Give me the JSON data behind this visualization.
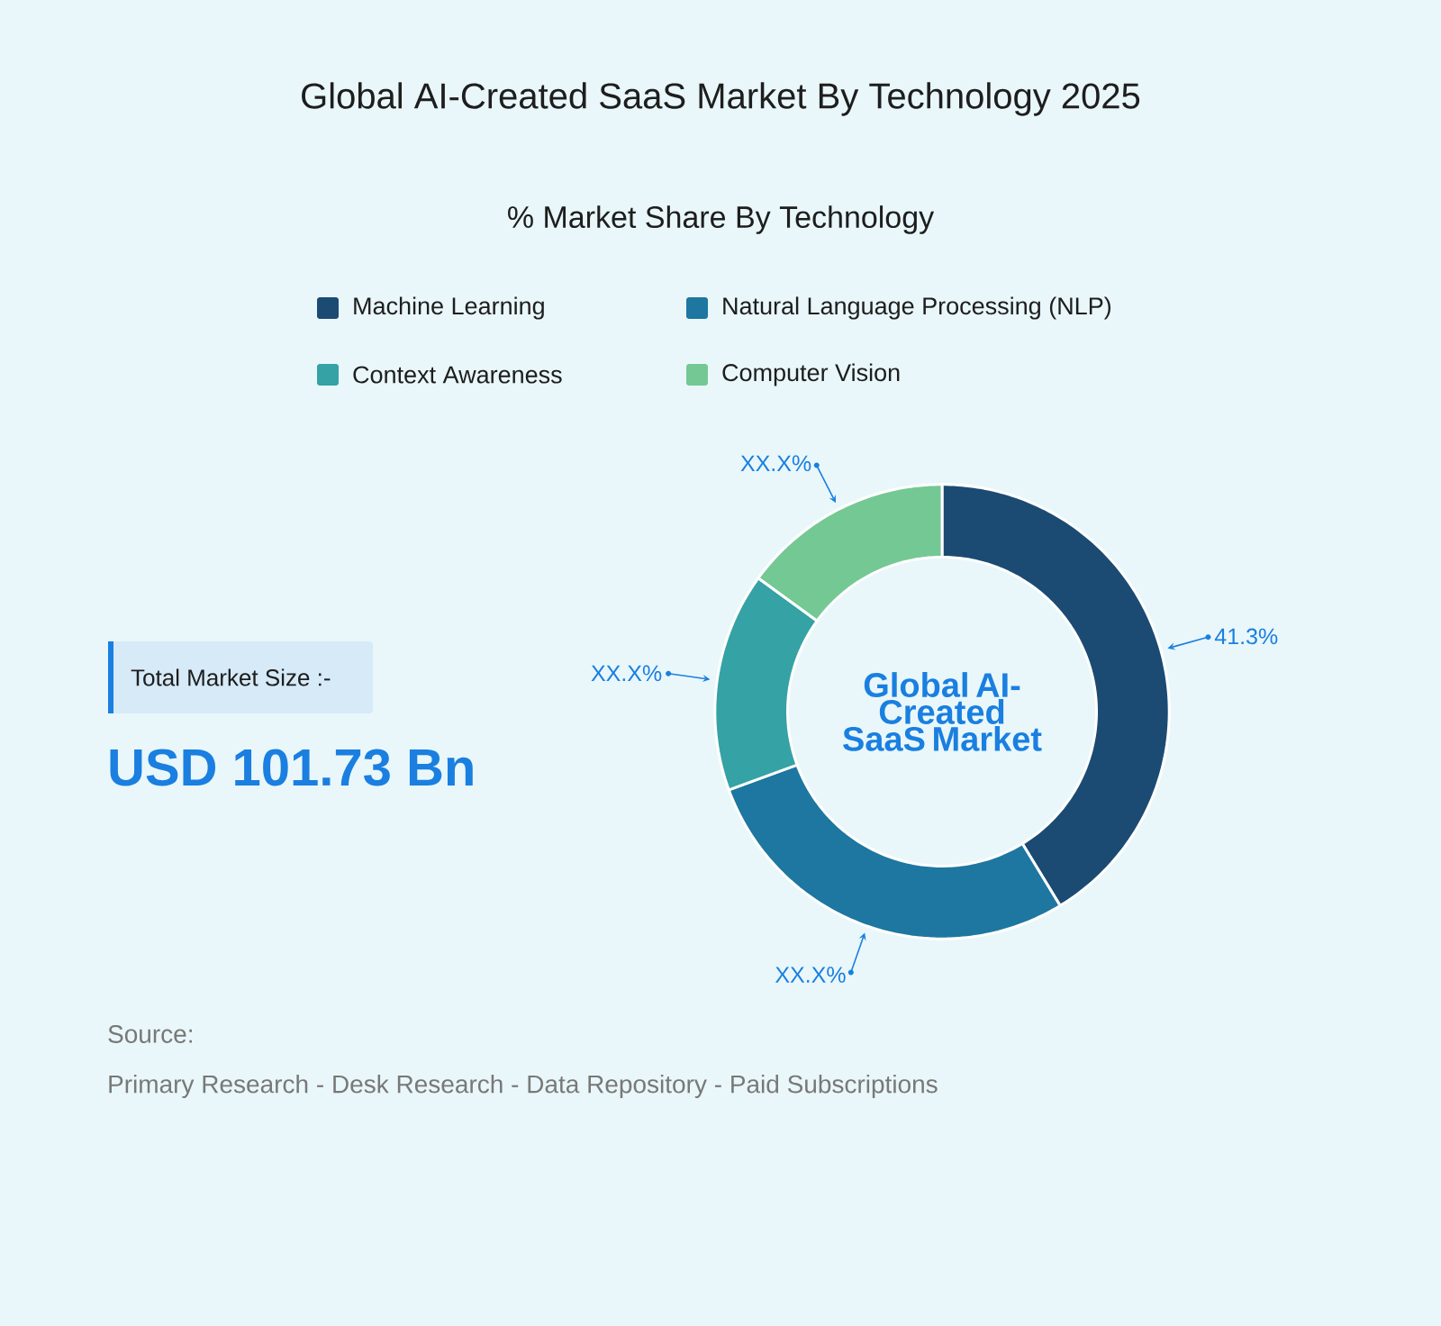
{
  "chart_data": {
    "type": "donut",
    "title": "Global AI-Created SaaS Market By Technology 2025",
    "subtitle": "% Market Share By Technology",
    "categories": [
      "Machine Learning",
      "Natural Language Processing (NLP)",
      "Context Awareness",
      "Computer Vision"
    ],
    "values": [
      41.3,
      28.1,
      15.6,
      15.0
    ],
    "colors": [
      "#1b4b73",
      "#1d77a0",
      "#35a2a5",
      "#74c894"
    ],
    "value_labels": [
      "41.3%",
      "XX.X%",
      "XX.X%",
      "XX.X%"
    ],
    "legend": "top",
    "annotations": [
      "Global AI-Created SaaS Market",
      "Total Market Size :-",
      "USD 101.73 Bn",
      "Source:",
      "Primary Research  -  Desk Research  -  Data Repository  -  Paid Subscriptions"
    ]
  }
}
